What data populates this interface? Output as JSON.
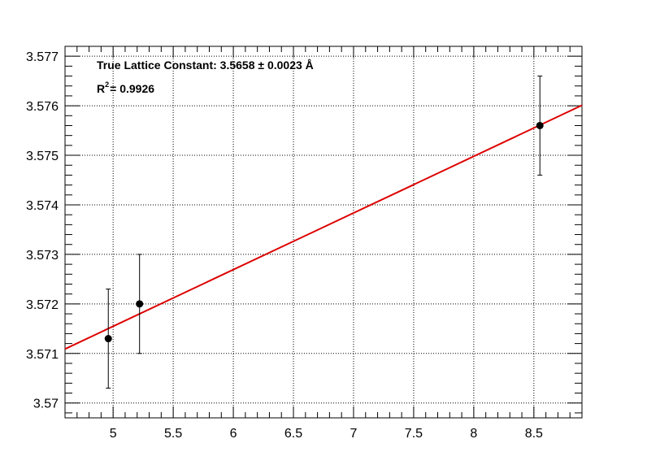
{
  "chart_data": {
    "type": "scatter",
    "title": "",
    "xlabel": "",
    "ylabel": "",
    "xlim": [
      4.6,
      8.9
    ],
    "ylim": [
      3.5697,
      3.5772
    ],
    "grid": true,
    "x_ticks": [
      5,
      5.5,
      6,
      6.5,
      7,
      7.5,
      8,
      8.5
    ],
    "x_tick_labels": [
      "5",
      "5.5",
      "6",
      "6.5",
      "7",
      "7.5",
      "8",
      "8.5"
    ],
    "y_ticks": [
      3.57,
      3.571,
      3.572,
      3.573,
      3.574,
      3.575,
      3.576,
      3.577
    ],
    "y_tick_labels": [
      "3.57",
      "3.571",
      "3.572",
      "3.573",
      "3.574",
      "3.575",
      "3.576",
      "3.577"
    ],
    "points": [
      {
        "x": 4.96,
        "y": 3.5713,
        "yerr": 0.001
      },
      {
        "x": 5.22,
        "y": 3.572,
        "yerr": 0.001
      },
      {
        "x": 8.55,
        "y": 3.5756,
        "yerr": 0.001
      }
    ],
    "fit_line": {
      "x": [
        4.6,
        8.9
      ],
      "y": [
        3.57109,
        3.57601
      ],
      "color": "#dd0000"
    },
    "marker_color": "#000000",
    "annotations": {
      "lattice_text": "True Lattice Constant: 3.5658 ± 0.0023  Å",
      "r2_label": "R",
      "r2_exponent": "2",
      "r2_value": "= 0.9926"
    }
  }
}
